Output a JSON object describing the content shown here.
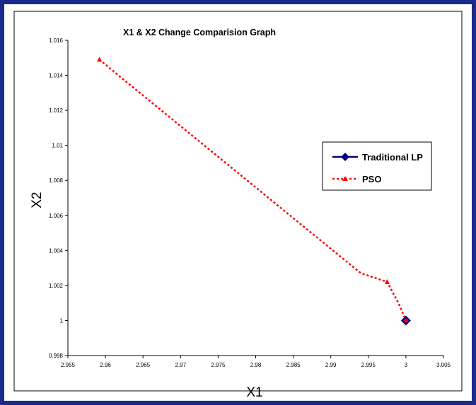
{
  "chart_data": {
    "type": "line",
    "title": "X1 & X2 Change Comparision Graph",
    "xlabel": "X1",
    "ylabel": "X2",
    "xlim": [
      2.955,
      3.005
    ],
    "ylim": [
      0.998,
      1.016
    ],
    "xticks": [
      2.955,
      2.96,
      2.965,
      2.97,
      2.975,
      2.98,
      2.985,
      2.99,
      2.995,
      3,
      3.005
    ],
    "yticks": [
      0.998,
      1,
      1.002,
      1.004,
      1.006,
      1.008,
      1.01,
      1.012,
      1.014,
      1.016
    ],
    "xtick_labels": [
      "2.955",
      "2.96",
      "2.965",
      "2.97",
      "2.975",
      "2.98",
      "2.985",
      "2.99",
      "2.995",
      "3",
      "3.005"
    ],
    "ytick_labels": [
      "0.998",
      "1",
      "1.002",
      "1.004",
      "1.006",
      "1.008",
      "1.01",
      "1.012",
      "1.014",
      "1.016"
    ],
    "grid": false,
    "legend_position": "right",
    "series": [
      {
        "name": "Traditional LP",
        "color": "#000080",
        "style": "solid",
        "marker": "diamond",
        "x": [
          3
        ],
        "y": [
          1
        ]
      },
      {
        "name": "PSO",
        "color": "#ff0000",
        "style": "dotted",
        "marker": "triangle",
        "x": [
          2.9592,
          2.962,
          2.966,
          2.97,
          2.974,
          2.978,
          2.982,
          2.986,
          2.99,
          2.994,
          2.9975,
          2.999,
          3.0
        ],
        "y": [
          1.0149,
          1.0139,
          1.0125,
          1.0111,
          1.0097,
          1.0083,
          1.0069,
          1.0055,
          1.0041,
          1.0027,
          1.0022,
          1.001,
          1.0
        ]
      }
    ]
  }
}
